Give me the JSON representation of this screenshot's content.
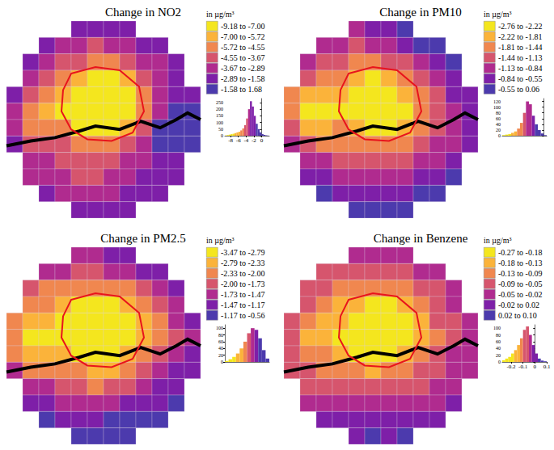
{
  "chart_data": [
    {
      "type": "choropleth",
      "title": "Change in NO2",
      "unit_label": "in µg/m³",
      "color_bins": [
        {
          "min": -9.18,
          "max": -7.0,
          "label": "-9.18 to -7.00",
          "color": "#f4e61e"
        },
        {
          "min": -7.0,
          "max": -5.72,
          "label": "-7.00 to -5.72",
          "color": "#fbb33a"
        },
        {
          "min": -5.72,
          "max": -4.55,
          "label": "-5.72 to -4.55",
          "color": "#f0874f"
        },
        {
          "min": -4.55,
          "max": -3.67,
          "label": "-4.55 to -3.67",
          "color": "#d6556d"
        },
        {
          "min": -3.67,
          "max": -2.89,
          "label": "-3.67 to -2.89",
          "color": "#b02b8f"
        },
        {
          "min": -2.89,
          "max": -1.58,
          "label": "-2.89 to -1.58",
          "color": "#7e1fa8"
        },
        {
          "min": -1.58,
          "max": 1.68,
          "label": "-1.58 to 1.68",
          "color": "#4c3aad"
        }
      ],
      "cells": [
        [
          null,
          null,
          null,
          null,
          -2.5,
          -2.8,
          -2.6,
          -2.3,
          null,
          null,
          null,
          null
        ],
        [
          null,
          null,
          -2.4,
          -2.9,
          -3.3,
          -3.8,
          -3.6,
          -3.2,
          -2.7,
          -2.2,
          null,
          null
        ],
        [
          null,
          -2.6,
          -3.2,
          -3.8,
          -4.4,
          -5.2,
          -5.0,
          -4.3,
          -3.6,
          -2.9,
          -2.2,
          null
        ],
        [
          null,
          -3.0,
          -3.9,
          -4.8,
          -6.2,
          -7.6,
          -7.8,
          -6.0,
          -4.5,
          -3.4,
          -2.5,
          null
        ],
        [
          -2.8,
          -4.0,
          -5.0,
          -6.0,
          -7.6,
          -8.8,
          -8.9,
          -7.4,
          -5.0,
          -3.6,
          -2.6,
          -2.0
        ],
        [
          -3.2,
          -5.6,
          -6.4,
          -7.3,
          -8.2,
          -9.0,
          -8.8,
          -7.8,
          -5.2,
          -3.2,
          -1.5,
          -1.2
        ],
        [
          -3.0,
          -4.6,
          -5.0,
          -5.6,
          -7.0,
          -8.0,
          -7.6,
          -6.0,
          -3.8,
          -1.4,
          -0.6,
          0.4
        ],
        [
          -2.8,
          -3.8,
          -4.0,
          -4.4,
          -4.8,
          -5.4,
          -5.2,
          -4.4,
          -3.4,
          -1.2,
          -0.2,
          -1.0
        ],
        [
          null,
          -3.2,
          -3.6,
          -4.0,
          -4.2,
          -4.3,
          -4.0,
          -3.6,
          -3.0,
          -2.2,
          -1.6,
          null
        ],
        [
          null,
          -2.9,
          -3.2,
          -3.6,
          -3.7,
          -3.7,
          -3.5,
          -3.2,
          -2.8,
          -2.3,
          -1.9,
          null
        ],
        [
          null,
          null,
          -2.8,
          -3.1,
          -3.2,
          -3.3,
          -3.0,
          -2.8,
          -2.4,
          -2.0,
          null,
          null
        ],
        [
          null,
          null,
          null,
          null,
          -2.6,
          -2.7,
          -2.5,
          -2.2,
          null,
          null,
          null,
          null
        ]
      ],
      "histogram": {
        "type": "histogram",
        "bins": [
          -9.5,
          -9,
          -8.5,
          -8,
          -7.5,
          -7,
          -6.5,
          -6,
          -5.5,
          -5,
          -4.5,
          -4,
          -3.5,
          -3,
          -2.5,
          -2,
          -1.5,
          -1,
          -0.5,
          0,
          0.5,
          1,
          1.5,
          2
        ],
        "counts": [
          2,
          5,
          8,
          12,
          15,
          20,
          25,
          30,
          40,
          55,
          80,
          130,
          200,
          260,
          220,
          150,
          90,
          50,
          25,
          12,
          6,
          3,
          1
        ],
        "xlim": [
          -9.5,
          2
        ],
        "xticks": [
          -8,
          -6,
          -4,
          -2,
          0
        ],
        "ylim": [
          0,
          280
        ],
        "yticks": [
          0,
          50,
          100,
          150,
          200,
          250
        ]
      }
    },
    {
      "type": "choropleth",
      "title": "Change in PM10",
      "unit_label": "in µg/m³",
      "color_bins": [
        {
          "min": -2.76,
          "max": -2.22,
          "label": "-2.76 to -2.22",
          "color": "#f4e61e"
        },
        {
          "min": -2.22,
          "max": -1.81,
          "label": "-2.22 to -1.81",
          "color": "#fbb33a"
        },
        {
          "min": -1.81,
          "max": -1.44,
          "label": "-1.81 to -1.44",
          "color": "#f0874f"
        },
        {
          "min": -1.44,
          "max": -1.13,
          "label": "-1.44 to -1.13",
          "color": "#d6556d"
        },
        {
          "min": -1.13,
          "max": -0.84,
          "label": "-1.13 to -0.84",
          "color": "#b02b8f"
        },
        {
          "min": -0.84,
          "max": -0.55,
          "label": "-0.84 to -0.55",
          "color": "#7e1fa8"
        },
        {
          "min": -0.55,
          "max": 0.06,
          "label": "-0.55 to 0.06",
          "color": "#4c3aad"
        }
      ],
      "cells": [
        [
          null,
          null,
          null,
          null,
          -0.9,
          -0.7,
          -0.6,
          -0.4,
          null,
          null,
          null,
          null
        ],
        [
          null,
          null,
          -1.0,
          -1.1,
          -1.2,
          -1.0,
          -0.9,
          -0.7,
          -0.5,
          -0.3,
          null,
          null
        ],
        [
          null,
          -1.1,
          -1.3,
          -1.4,
          -1.6,
          -1.6,
          -1.4,
          -1.2,
          -0.9,
          -0.6,
          -0.4,
          null
        ],
        [
          null,
          -1.4,
          -1.6,
          -1.8,
          -2.0,
          -2.3,
          -2.2,
          -1.8,
          -1.4,
          -1.0,
          -0.6,
          null
        ],
        [
          -1.5,
          -1.9,
          -2.1,
          -2.2,
          -2.4,
          -2.6,
          -2.6,
          -2.2,
          -1.7,
          -1.2,
          -0.8,
          -0.6
        ],
        [
          -1.7,
          -2.3,
          -2.5,
          -2.4,
          -2.5,
          -2.7,
          -2.6,
          -2.3,
          -1.8,
          -1.3,
          -1.0,
          -0.8
        ],
        [
          -1.4,
          -1.9,
          -1.9,
          -1.8,
          -2.2,
          -2.4,
          -2.3,
          -2.0,
          -1.6,
          -1.2,
          -0.9,
          -0.7
        ],
        [
          -1.1,
          -1.4,
          -1.5,
          -1.5,
          -1.6,
          -1.8,
          -1.8,
          -1.6,
          -1.4,
          -1.1,
          -0.9,
          -0.7
        ],
        [
          null,
          -1.0,
          -1.1,
          -1.2,
          -1.3,
          -1.4,
          -1.4,
          -1.3,
          -1.1,
          -0.9,
          -0.7,
          null
        ],
        [
          null,
          -0.7,
          -0.8,
          -0.9,
          -1.0,
          -1.1,
          -1.0,
          -0.9,
          -0.8,
          -0.7,
          -0.5,
          null
        ],
        [
          null,
          null,
          -0.5,
          -0.6,
          -0.7,
          -0.7,
          -0.6,
          -0.6,
          -0.5,
          -0.4,
          null,
          null
        ],
        [
          null,
          null,
          null,
          null,
          -0.4,
          -0.4,
          -0.4,
          -0.3,
          null,
          null,
          null,
          null
        ]
      ],
      "histogram": {
        "type": "histogram",
        "bins": [
          -2.8,
          -2.6,
          -2.4,
          -2.2,
          -2.0,
          -1.8,
          -1.6,
          -1.4,
          -1.2,
          -1.0,
          -0.8,
          -0.6,
          -0.4,
          -0.2,
          0,
          0.2
        ],
        "counts": [
          2,
          4,
          6,
          10,
          15,
          25,
          45,
          80,
          120,
          110,
          70,
          40,
          20,
          8,
          2
        ],
        "xlim": [
          -2.8,
          0.2
        ],
        "ylim": [
          0,
          130
        ],
        "yticks": [
          0,
          20,
          40,
          60,
          80,
          100,
          120
        ],
        "tick_labels": "y"
      }
    },
    {
      "type": "choropleth",
      "title": "Change in PM2.5",
      "unit_label": "in µg/m³",
      "color_bins": [
        {
          "min": -3.47,
          "max": -2.79,
          "label": "-3.47 to -2.79",
          "color": "#f4e61e"
        },
        {
          "min": -2.79,
          "max": -2.33,
          "label": "-2.79 to -2.33",
          "color": "#fbb33a"
        },
        {
          "min": -2.33,
          "max": -2.0,
          "label": "-2.33 to -2.00",
          "color": "#f0874f"
        },
        {
          "min": -2.0,
          "max": -1.73,
          "label": "-2.00 to -1.73",
          "color": "#d6556d"
        },
        {
          "min": -1.73,
          "max": -1.47,
          "label": "-1.73 to -1.47",
          "color": "#b02b8f"
        },
        {
          "min": -1.47,
          "max": -1.17,
          "label": "-1.47 to -1.17",
          "color": "#7e1fa8"
        },
        {
          "min": -1.17,
          "max": -0.56,
          "label": "-1.17 to -0.56",
          "color": "#4c3aad"
        }
      ],
      "cells": [
        [
          null,
          null,
          null,
          null,
          -1.6,
          -1.5,
          -1.4,
          -1.3,
          null,
          null,
          null,
          null
        ],
        [
          null,
          null,
          -1.6,
          -1.7,
          -1.8,
          -1.8,
          -1.7,
          -1.6,
          -1.4,
          -1.3,
          null,
          null
        ],
        [
          null,
          -1.8,
          -2.0,
          -2.1,
          -2.3,
          -2.3,
          -2.2,
          -2.0,
          -1.8,
          -1.6,
          -1.4,
          null
        ],
        [
          null,
          -2.1,
          -2.3,
          -2.5,
          -2.8,
          -3.0,
          -2.9,
          -2.5,
          -2.2,
          -1.9,
          -1.6,
          null
        ],
        [
          -2.1,
          -2.5,
          -2.7,
          -2.9,
          -3.1,
          -3.3,
          -3.3,
          -2.9,
          -2.4,
          -2.0,
          -1.7,
          -1.4
        ],
        [
          -2.3,
          -2.9,
          -3.1,
          -3.0,
          -3.2,
          -3.4,
          -3.3,
          -3.0,
          -2.5,
          -2.0,
          -1.8,
          -1.6
        ],
        [
          -2.0,
          -2.5,
          -2.5,
          -2.4,
          -2.9,
          -3.1,
          -3.0,
          -2.7,
          -2.2,
          -1.8,
          -1.5,
          -1.3
        ],
        [
          -1.7,
          -2.0,
          -2.1,
          -2.1,
          -2.2,
          -2.4,
          -2.4,
          -2.2,
          -1.9,
          -1.6,
          -1.4,
          -1.2
        ],
        [
          null,
          -1.6,
          -1.7,
          -1.8,
          -1.9,
          -2.0,
          -1.9,
          -1.8,
          -1.6,
          -1.4,
          -1.2,
          null
        ],
        [
          null,
          -1.3,
          -1.4,
          -1.5,
          -1.6,
          -1.6,
          -1.5,
          -1.4,
          -1.3,
          -1.2,
          -1.0,
          null
        ],
        [
          null,
          null,
          -1.1,
          -1.2,
          -1.2,
          -1.2,
          -1.1,
          -1.1,
          -1.0,
          -0.9,
          null,
          null
        ],
        [
          null,
          null,
          null,
          null,
          -0.9,
          -0.9,
          -0.8,
          -0.8,
          null,
          null,
          null,
          null
        ]
      ],
      "histogram": {
        "type": "histogram",
        "bins": [
          -3.5,
          -3.25,
          -3.0,
          -2.75,
          -2.5,
          -2.25,
          -2.0,
          -1.75,
          -1.5,
          -1.25,
          -1.0,
          -0.75,
          -0.5
        ],
        "counts": [
          3,
          8,
          15,
          25,
          40,
          60,
          85,
          100,
          95,
          70,
          35,
          10
        ],
        "xlim": [
          -3.5,
          -0.5
        ],
        "ylim": [
          0,
          110
        ],
        "yticks": [
          0,
          20,
          40,
          60,
          80,
          100
        ],
        "tick_labels": "y"
      }
    },
    {
      "type": "choropleth",
      "title": "Change in Benzene",
      "unit_label": "in µg/m³",
      "color_bins": [
        {
          "min": -0.27,
          "max": -0.18,
          "label": "-0.27 to -0.18",
          "color": "#f4e61e"
        },
        {
          "min": -0.18,
          "max": -0.13,
          "label": "-0.18 to -0.13",
          "color": "#fbb33a"
        },
        {
          "min": -0.13,
          "max": -0.09,
          "label": "-0.13 to -0.09",
          "color": "#f0874f"
        },
        {
          "min": -0.09,
          "max": -0.05,
          "label": "-0.09 to -0.05",
          "color": "#d6556d"
        },
        {
          "min": -0.05,
          "max": -0.02,
          "label": "-0.05 to -0.02",
          "color": "#b02b8f"
        },
        {
          "min": -0.02,
          "max": 0.02,
          "label": "-0.02 to 0.02",
          "color": "#7e1fa8"
        },
        {
          "min": 0.02,
          "max": 0.1,
          "label": "0.02 to 0.10",
          "color": "#4c3aad"
        }
      ],
      "cells": [
        [
          null,
          null,
          null,
          null,
          -0.04,
          -0.04,
          -0.03,
          -0.03,
          null,
          null,
          null,
          null
        ],
        [
          null,
          null,
          -0.05,
          -0.06,
          -0.07,
          -0.07,
          -0.06,
          -0.05,
          -0.04,
          -0.03,
          null,
          null
        ],
        [
          null,
          -0.06,
          -0.08,
          -0.09,
          -0.11,
          -0.12,
          -0.11,
          -0.09,
          -0.07,
          -0.05,
          -0.03,
          null
        ],
        [
          null,
          -0.08,
          -0.11,
          -0.13,
          -0.17,
          -0.2,
          -0.19,
          -0.14,
          -0.1,
          -0.07,
          -0.04,
          null
        ],
        [
          -0.07,
          -0.11,
          -0.14,
          -0.17,
          -0.21,
          -0.25,
          -0.24,
          -0.19,
          -0.13,
          -0.08,
          -0.05,
          -0.03
        ],
        [
          -0.08,
          -0.14,
          -0.17,
          -0.18,
          -0.22,
          -0.26,
          -0.25,
          -0.2,
          -0.14,
          -0.09,
          -0.05,
          -0.03
        ],
        [
          -0.07,
          -0.11,
          -0.12,
          -0.13,
          -0.19,
          -0.22,
          -0.21,
          -0.16,
          -0.11,
          -0.07,
          -0.04,
          -0.02
        ],
        [
          -0.05,
          -0.08,
          -0.09,
          -0.1,
          -0.11,
          -0.13,
          -0.12,
          -0.1,
          -0.08,
          -0.05,
          -0.03,
          -0.02
        ],
        [
          null,
          -0.05,
          -0.06,
          -0.07,
          -0.07,
          -0.08,
          -0.07,
          -0.06,
          -0.05,
          -0.04,
          -0.02,
          null
        ],
        [
          null,
          -0.03,
          -0.03,
          -0.04,
          -0.04,
          -0.04,
          -0.04,
          -0.03,
          -0.03,
          -0.02,
          -0.01,
          null
        ],
        [
          null,
          null,
          -0.01,
          0.0,
          -0.01,
          0.0,
          0.01,
          0.0,
          0.01,
          0.01,
          null,
          null
        ],
        [
          null,
          null,
          null,
          null,
          0.02,
          0.03,
          0.02,
          0.03,
          null,
          null,
          null,
          null
        ]
      ],
      "histogram": {
        "type": "histogram",
        "bins": [
          -0.275,
          -0.25,
          -0.225,
          -0.2,
          -0.175,
          -0.15,
          -0.125,
          -0.1,
          -0.075,
          -0.05,
          -0.025,
          0,
          0.025,
          0.05,
          0.075,
          0.1
        ],
        "counts": [
          5,
          10,
          15,
          25,
          35,
          50,
          70,
          95,
          105,
          80,
          50,
          25,
          10,
          4,
          2
        ],
        "xlim": [
          -0.275,
          0.1
        ],
        "xticks": [
          -0.2,
          -0.1,
          0,
          0.1
        ],
        "ylim": [
          0,
          110
        ],
        "yticks": [
          0,
          20,
          40,
          60,
          80,
          100
        ]
      }
    }
  ]
}
